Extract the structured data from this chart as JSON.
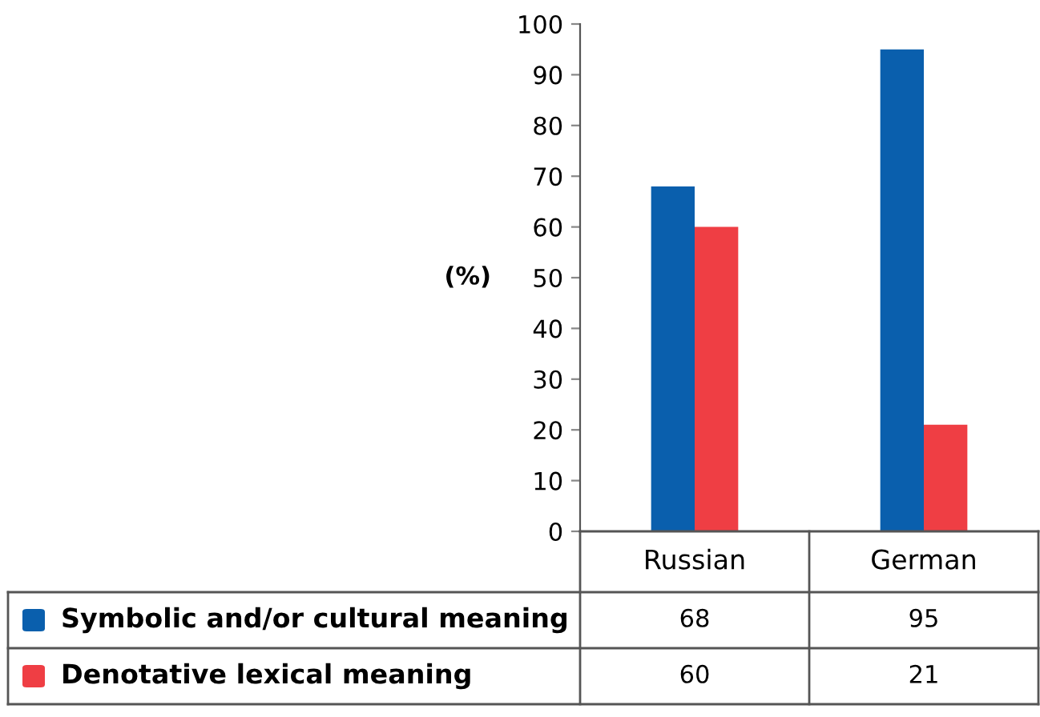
{
  "chart_data": {
    "type": "bar",
    "ylabel": "(%)",
    "categories": [
      "Russian",
      "German"
    ],
    "series": [
      {
        "name": "Symbolic and/or cultural meaning",
        "color": "#0a5fad",
        "values": [
          68,
          95
        ]
      },
      {
        "name": "Denotative lexical meaning",
        "color": "#ef3e44",
        "values": [
          60,
          21
        ]
      }
    ],
    "ylim": [
      0,
      100
    ],
    "yticks": [
      0,
      10,
      20,
      30,
      40,
      50,
      60,
      70,
      80,
      90,
      100
    ],
    "grid": false,
    "legend": "bottom",
    "data_labels": true
  }
}
